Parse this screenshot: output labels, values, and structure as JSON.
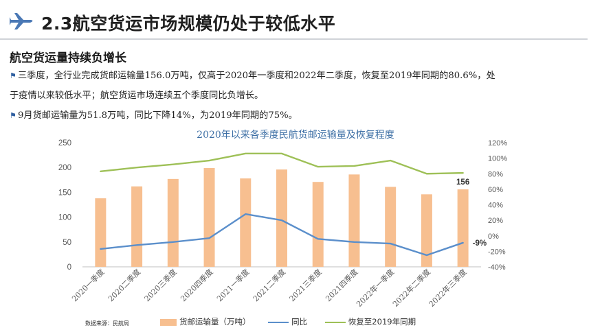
{
  "header": {
    "title": "2.3航空货运市场规模仍处于较低水平",
    "icon": "airplane-icon"
  },
  "subheading": "航空货运量持续负增长",
  "paragraphs": [
    "三季度，全行业完成货邮运输量156.0万吨，仅高于2020年一季度和2022年二季度，恢复至2019年同期的80.6%，处",
    "于疫情以来较低水平；航空货运市场连续五个季度同比负增长。",
    "9月货邮运输量为51.8万吨，同比下降14%，为2019年同期的75%。"
  ],
  "source": "数据来源：民航局",
  "colors": {
    "bar": "#f7bf90",
    "yoy": "#5b8fcb",
    "recovery": "#9ec057",
    "title": "#3d6fa5",
    "plane": "#4a78b5"
  },
  "chart_data": {
    "type": "bar",
    "title": "2020年以来各季度民航货邮运输量及恢复程度",
    "categories": [
      "2020一季度",
      "2020二季度",
      "2020三季度",
      "2020四季度",
      "2021一季度",
      "2021二季度",
      "2021三季度",
      "2021四季度",
      "2022年一季度",
      "2022年二季度",
      "2022年三季度"
    ],
    "series": [
      {
        "name": "货邮运输量（万吨）",
        "axis": "left",
        "kind": "bar",
        "values": [
          138,
          162,
          177,
          199,
          178,
          196,
          171,
          186,
          161,
          146,
          156
        ]
      },
      {
        "name": "同比",
        "axis": "right",
        "kind": "line",
        "values": [
          -17,
          -12,
          -8,
          -3,
          28,
          20,
          -4,
          -8,
          -10,
          -25,
          -9
        ]
      },
      {
        "name": "恢复至2019年同期",
        "axis": "right",
        "kind": "line",
        "values": [
          83,
          88,
          92,
          97,
          106,
          106,
          89,
          90,
          97,
          80,
          81
        ]
      }
    ],
    "data_labels": [
      {
        "series": 0,
        "index": 10,
        "text": "156"
      },
      {
        "series": 1,
        "index": 10,
        "text": "-9%"
      }
    ],
    "ylim_left": [
      0,
      250
    ],
    "yticks_left": [
      "0",
      "50",
      "100",
      "150",
      "200",
      "250"
    ],
    "ylim_right": [
      -40,
      120
    ],
    "yticks_right": [
      "-40%",
      "-20%",
      "0%",
      "20%",
      "40%",
      "60%",
      "80%",
      "100%",
      "120%"
    ],
    "grid": false,
    "legend_position": "bottom"
  }
}
